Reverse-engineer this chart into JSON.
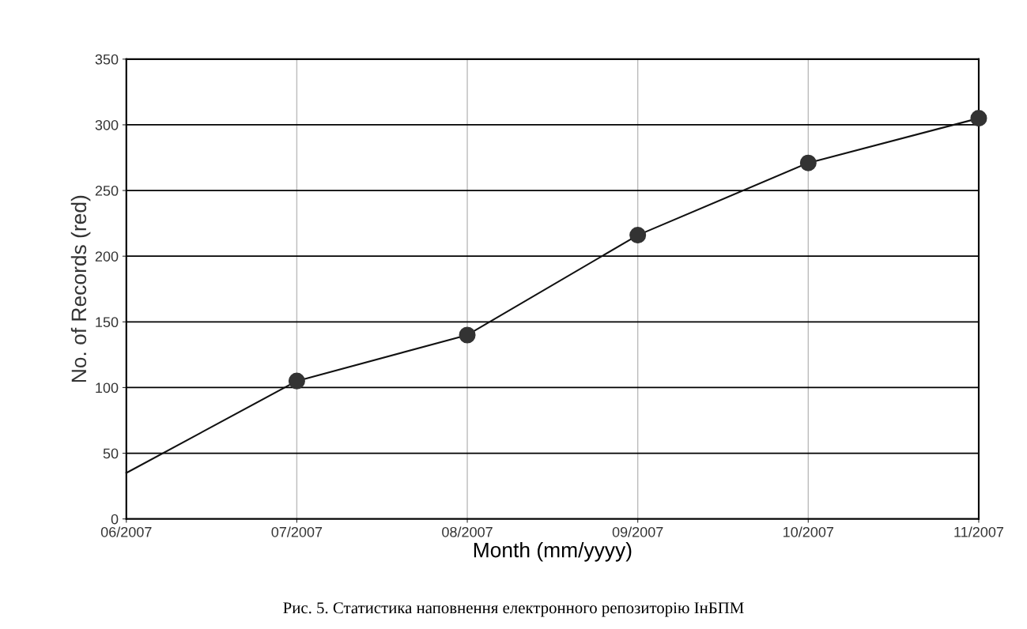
{
  "chart_data": {
    "type": "line",
    "categories": [
      "06/2007",
      "07/2007",
      "08/2007",
      "09/2007",
      "10/2007",
      "11/2007"
    ],
    "series": [
      {
        "color": "#111111",
        "marker": "none",
        "values": [
          35,
          105,
          140,
          216,
          271,
          305
        ]
      },
      {
        "type": "scatter",
        "color": "#333333",
        "marker": "circle",
        "values": [
          null,
          105,
          140,
          216,
          271,
          305
        ]
      }
    ],
    "xlabel": "Month (mm/yyyy)",
    "ylabel": "No. of Records (red)",
    "ylim": [
      0,
      350
    ],
    "yticks": [
      0,
      50,
      100,
      150,
      200,
      250,
      300,
      350
    ],
    "grid": true,
    "annotations": [
      "Рис. 5. Статистика наповнення електронного репозиторію ІнБПМ"
    ]
  }
}
